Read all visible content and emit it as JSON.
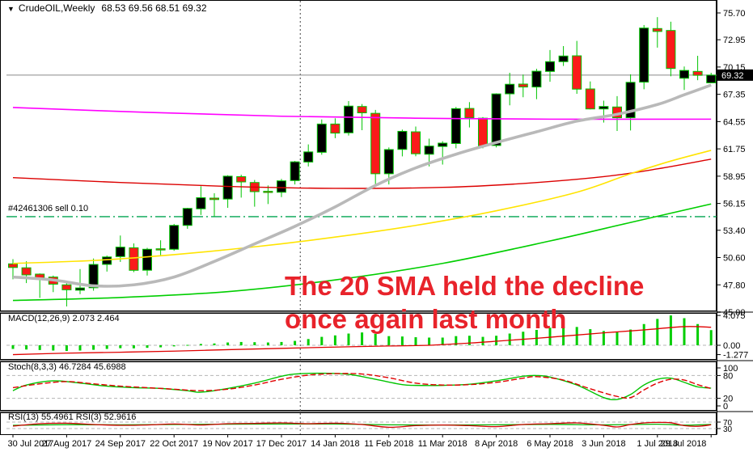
{
  "window": {
    "icon": "▼",
    "symbol": "CrudeOIL,Weekly",
    "ohlc": "68.53 69.56 68.51 69.32"
  },
  "annotation": {
    "line1": "The 20 SMA held the decline",
    "line2": "once again last month",
    "color": "#e8232b"
  },
  "order_line": {
    "label": "#42461306 sell 0.10",
    "price": 54.8
  },
  "colors": {
    "bull_body": "#000000",
    "bear_body": "#fb1a1a",
    "candle_outline": "#00c400",
    "sma20_gray": "#b9b9b9",
    "ma_magenta": "#ff00ff",
    "ma_red": "#dc0000",
    "ma_yellow": "#ffe400",
    "ma_green": "#00ce00",
    "macd_hist": "#00ce00",
    "macd_signal": "#e00000",
    "stoch_k": "#00c400",
    "stoch_d": "#e00000",
    "rsi_main": "#00b000",
    "rsi_fast": "#d00000",
    "order_line": "#00a550",
    "price_line": "#8a8a8a",
    "level_dash": "#b5b5b5",
    "frame": "#000000",
    "splitter": "#808080",
    "badge_bg": "#000000",
    "badge_fg": "#ffffff"
  },
  "chart_data": {
    "type": "candlestick",
    "title": "CrudeOIL,Weekly",
    "symbol": "CrudeOIL",
    "timeframe": "Weekly",
    "current_bar_ohlc": [
      68.53,
      69.56,
      68.51,
      69.32
    ],
    "ylim": [
      45.0,
      75.7
    ],
    "price_axis": {
      "labels": [
        "75.70",
        "72.95",
        "70.15",
        "67.35",
        "64.55",
        "61.75",
        "58.95",
        "56.15",
        "53.40",
        "50.60",
        "47.80",
        "45.00"
      ],
      "current_label": "69.32",
      "current_price": 69.32
    },
    "dates": [
      {
        "index": 0,
        "label": "30 Jul 2017"
      },
      {
        "index": 4,
        "label": "27 Aug 2017"
      },
      {
        "index": 8,
        "label": "24 Sep 2017"
      },
      {
        "index": 12,
        "label": "22 Oct 2017"
      },
      {
        "index": 16,
        "label": "19 Nov 2017"
      },
      {
        "index": 20,
        "label": "17 Dec 2017"
      },
      {
        "index": 24,
        "label": "14 Jan 2018"
      },
      {
        "index": 28,
        "label": "11 Feb 2018"
      },
      {
        "index": 32,
        "label": "11 Mar 2018"
      },
      {
        "index": 36,
        "label": "8 Apr 2018"
      },
      {
        "index": 40,
        "label": "6 May 2018"
      },
      {
        "index": 44,
        "label": "3 Jun 2018"
      },
      {
        "index": 48,
        "label": "1 Jul 2018"
      },
      {
        "index": 52,
        "label": "29 Jul 2018"
      }
    ],
    "vline_index": 21.4,
    "candles": [
      [
        49.95,
        50.43,
        48.37,
        49.58
      ],
      [
        49.55,
        50.22,
        47.98,
        48.82
      ],
      [
        48.9,
        48.97,
        46.46,
        48.51
      ],
      [
        48.6,
        48.75,
        47.05,
        47.87
      ],
      [
        47.8,
        47.98,
        45.58,
        47.29
      ],
      [
        47.25,
        49.42,
        46.85,
        47.48
      ],
      [
        47.5,
        50.5,
        47.2,
        49.89
      ],
      [
        49.9,
        50.8,
        49.16,
        50.66
      ],
      [
        50.7,
        52.86,
        50.15,
        51.67
      ],
      [
        51.6,
        52.05,
        49.1,
        49.29
      ],
      [
        49.3,
        51.6,
        48.75,
        51.45
      ],
      [
        51.5,
        52.37,
        50.72,
        51.47
      ],
      [
        51.45,
        54.05,
        51.29,
        53.9
      ],
      [
        53.9,
        55.7,
        53.55,
        55.64
      ],
      [
        55.6,
        57.92,
        54.97,
        56.74
      ],
      [
        56.7,
        57.2,
        54.81,
        56.55
      ],
      [
        56.6,
        59.05,
        55.7,
        58.95
      ],
      [
        58.9,
        59.1,
        56.75,
        58.36
      ],
      [
        58.3,
        58.56,
        55.82,
        57.36
      ],
      [
        57.4,
        58.0,
        56.09,
        57.3
      ],
      [
        57.3,
        58.67,
        56.8,
        58.47
      ],
      [
        58.5,
        60.51,
        58.1,
        60.42
      ],
      [
        60.4,
        62.21,
        59.95,
        61.44
      ],
      [
        61.4,
        64.77,
        61.15,
        64.3
      ],
      [
        64.3,
        64.89,
        62.85,
        63.37
      ],
      [
        63.4,
        66.66,
        63.12,
        66.14
      ],
      [
        66.1,
        66.35,
        63.67,
        65.45
      ],
      [
        65.4,
        65.75,
        58.07,
        59.2
      ],
      [
        59.2,
        61.9,
        58.1,
        61.68
      ],
      [
        61.7,
        63.73,
        60.98,
        63.55
      ],
      [
        63.5,
        64.04,
        60.99,
        61.25
      ],
      [
        61.2,
        62.8,
        59.95,
        62.04
      ],
      [
        62.0,
        62.54,
        60.14,
        62.34
      ],
      [
        62.3,
        66.05,
        61.81,
        65.88
      ],
      [
        65.9,
        66.55,
        63.95,
        64.94
      ],
      [
        64.9,
        65.02,
        61.81,
        62.06
      ],
      [
        62.1,
        67.45,
        61.9,
        67.39
      ],
      [
        67.4,
        69.56,
        66.22,
        68.38
      ],
      [
        68.4,
        69.38,
        67.05,
        68.1
      ],
      [
        68.1,
        69.97,
        66.85,
        69.72
      ],
      [
        69.7,
        71.89,
        68.64,
        70.7
      ],
      [
        70.7,
        72.3,
        70.26,
        71.28
      ],
      [
        71.3,
        72.83,
        67.4,
        67.88
      ],
      [
        67.9,
        68.67,
        65.8,
        65.85
      ],
      [
        65.85,
        66.7,
        64.45,
        66.1
      ],
      [
        66.05,
        67.16,
        63.59,
        64.95
      ],
      [
        64.95,
        69.4,
        63.64,
        68.58
      ],
      [
        68.6,
        74.46,
        67.87,
        74.15
      ],
      [
        74.1,
        75.27,
        72.14,
        73.8
      ],
      [
        73.9,
        74.8,
        69.2,
        70.0
      ],
      [
        69.0,
        70.2,
        67.8,
        69.8
      ],
      [
        69.7,
        71.3,
        68.8,
        69.3
      ],
      [
        68.53,
        69.56,
        68.51,
        69.32
      ]
    ],
    "moving_averages": {
      "sma20_gray": [
        [
          0,
          48.6
        ],
        [
          3,
          48.3
        ],
        [
          6,
          47.7
        ],
        [
          9,
          47.8
        ],
        [
          12,
          48.6
        ],
        [
          15,
          50.2
        ],
        [
          18,
          52.0
        ],
        [
          21,
          53.8
        ],
        [
          24,
          55.8
        ],
        [
          27,
          58.0
        ],
        [
          30,
          59.8
        ],
        [
          33,
          61.2
        ],
        [
          36,
          62.4
        ],
        [
          39,
          63.5
        ],
        [
          42,
          64.6
        ],
        [
          45,
          65.3
        ],
        [
          48,
          66.3
        ],
        [
          50,
          67.3
        ],
        [
          52,
          68.3
        ]
      ],
      "magenta": [
        [
          0,
          66.0
        ],
        [
          10,
          65.5
        ],
        [
          20,
          65.1
        ],
        [
          30,
          64.9
        ],
        [
          40,
          64.8
        ],
        [
          52,
          64.8
        ]
      ],
      "red": [
        [
          0,
          58.8
        ],
        [
          8,
          58.3
        ],
        [
          16,
          57.9
        ],
        [
          24,
          57.7
        ],
        [
          32,
          57.8
        ],
        [
          38,
          58.2
        ],
        [
          44,
          58.9
        ],
        [
          48,
          59.7
        ],
        [
          52,
          60.7
        ]
      ],
      "yellow": [
        [
          0,
          50.0
        ],
        [
          6,
          50.3
        ],
        [
          12,
          50.9
        ],
        [
          18,
          51.7
        ],
        [
          24,
          52.7
        ],
        [
          30,
          53.9
        ],
        [
          36,
          55.4
        ],
        [
          42,
          57.3
        ],
        [
          46,
          59.2
        ],
        [
          49,
          60.5
        ],
        [
          52,
          61.6
        ]
      ],
      "green": [
        [
          0,
          46.2
        ],
        [
          8,
          46.5
        ],
        [
          16,
          47.1
        ],
        [
          24,
          48.3
        ],
        [
          32,
          50.0
        ],
        [
          40,
          52.3
        ],
        [
          46,
          54.2
        ],
        [
          52,
          56.1
        ]
      ]
    },
    "macd": {
      "label": "MACD(12,26,9) 2.073 2.464",
      "axis_labels": [
        "4.075",
        "0.00",
        "-1.277"
      ],
      "axis_values": [
        4.075,
        0.0,
        -1.277
      ],
      "histogram": [
        -0.5,
        -0.58,
        -0.65,
        -0.72,
        -0.78,
        -0.72,
        -0.62,
        -0.5,
        -0.4,
        -0.42,
        -0.35,
        -0.28,
        -0.15,
        0.05,
        0.18,
        0.25,
        0.38,
        0.45,
        0.42,
        0.38,
        0.45,
        0.6,
        0.85,
        1.15,
        1.35,
        1.6,
        1.75,
        1.55,
        1.25,
        1.2,
        1.1,
        1.05,
        1.05,
        1.25,
        1.3,
        1.15,
        1.3,
        1.6,
        1.85,
        2.1,
        2.4,
        2.6,
        2.5,
        2.2,
        1.95,
        1.85,
        2.15,
        2.9,
        3.6,
        4.075,
        3.7,
        2.9,
        2.073
      ],
      "signal": [
        [
          0,
          -1.277
        ],
        [
          4,
          -1.08
        ],
        [
          8,
          -0.95
        ],
        [
          12,
          -0.8
        ],
        [
          16,
          -0.6
        ],
        [
          20,
          -0.42
        ],
        [
          24,
          -0.25
        ],
        [
          28,
          -0.1
        ],
        [
          31,
          0.0
        ],
        [
          34,
          0.3
        ],
        [
          36,
          0.55
        ],
        [
          40,
          1.1
        ],
        [
          44,
          1.7
        ],
        [
          47,
          2.1
        ],
        [
          50,
          2.55
        ],
        [
          52,
          2.464
        ]
      ]
    },
    "stoch": {
      "label": "Stoch(8,3,3) 46.7284 45.6988",
      "axis_labels": [
        "100",
        "80",
        "20",
        "0"
      ],
      "axis_values": [
        100,
        80,
        20,
        0
      ],
      "levels": [
        80,
        20
      ],
      "k": [
        [
          0,
          40
        ],
        [
          1,
          55
        ],
        [
          3,
          66
        ],
        [
          5,
          60
        ],
        [
          7,
          52
        ],
        [
          9,
          48
        ],
        [
          11,
          46
        ],
        [
          13,
          40
        ],
        [
          14,
          36
        ],
        [
          16,
          46
        ],
        [
          18,
          60
        ],
        [
          20,
          78
        ],
        [
          21,
          84
        ],
        [
          23,
          86
        ],
        [
          25,
          83
        ],
        [
          27,
          70
        ],
        [
          29,
          56
        ],
        [
          30,
          54
        ],
        [
          32,
          54
        ],
        [
          34,
          57
        ],
        [
          36,
          66
        ],
        [
          38,
          78
        ],
        [
          39,
          80
        ],
        [
          40,
          76
        ],
        [
          42,
          55
        ],
        [
          44,
          22
        ],
        [
          45,
          17
        ],
        [
          46,
          30
        ],
        [
          47,
          55
        ],
        [
          48,
          70
        ],
        [
          49,
          73
        ],
        [
          50,
          62
        ],
        [
          51,
          50
        ],
        [
          52,
          46.7
        ]
      ],
      "d": [
        [
          0,
          48
        ],
        [
          2,
          58
        ],
        [
          4,
          64
        ],
        [
          6,
          58
        ],
        [
          8,
          52
        ],
        [
          10,
          48
        ],
        [
          12,
          44
        ],
        [
          14,
          40
        ],
        [
          16,
          44
        ],
        [
          18,
          55
        ],
        [
          20,
          70
        ],
        [
          22,
          81
        ],
        [
          24,
          85
        ],
        [
          26,
          84
        ],
        [
          28,
          74
        ],
        [
          30,
          60
        ],
        [
          32,
          55
        ],
        [
          34,
          56
        ],
        [
          36,
          62
        ],
        [
          38,
          73
        ],
        [
          39,
          77
        ],
        [
          41,
          68
        ],
        [
          43,
          45
        ],
        [
          45,
          25
        ],
        [
          46,
          22
        ],
        [
          47,
          42
        ],
        [
          48,
          60
        ],
        [
          49,
          70
        ],
        [
          50,
          68
        ],
        [
          51,
          56
        ],
        [
          52,
          45.7
        ]
      ]
    },
    "rsi": {
      "label": "RSI(13) 55.4961 RSI(3) 52.9616",
      "axis_labels": [
        "70",
        "30"
      ],
      "axis_values": [
        70,
        30
      ],
      "levels": [
        70,
        30
      ],
      "rsi13": [
        [
          0,
          50
        ],
        [
          4,
          54
        ],
        [
          8,
          53
        ],
        [
          12,
          55
        ],
        [
          16,
          57
        ],
        [
          20,
          58
        ],
        [
          24,
          58
        ],
        [
          28,
          53
        ],
        [
          32,
          52
        ],
        [
          36,
          53
        ],
        [
          40,
          56
        ],
        [
          44,
          53
        ],
        [
          48,
          57
        ],
        [
          50,
          51
        ],
        [
          52,
          55.5
        ]
      ],
      "rsi3": [
        [
          0,
          45
        ],
        [
          2,
          60
        ],
        [
          4,
          63
        ],
        [
          6,
          55
        ],
        [
          8,
          50
        ],
        [
          10,
          52
        ],
        [
          12,
          58
        ],
        [
          14,
          52
        ],
        [
          16,
          60
        ],
        [
          18,
          62
        ],
        [
          20,
          65
        ],
        [
          22,
          60
        ],
        [
          24,
          63
        ],
        [
          26,
          55
        ],
        [
          28,
          38
        ],
        [
          30,
          48
        ],
        [
          32,
          52
        ],
        [
          34,
          48
        ],
        [
          36,
          42
        ],
        [
          38,
          55
        ],
        [
          40,
          60
        ],
        [
          42,
          65
        ],
        [
          44,
          50
        ],
        [
          45,
          40
        ],
        [
          46,
          55
        ],
        [
          47,
          65
        ],
        [
          48,
          68
        ],
        [
          49,
          66
        ],
        [
          50,
          48
        ],
        [
          51,
          44
        ],
        [
          52,
          53
        ]
      ]
    }
  }
}
